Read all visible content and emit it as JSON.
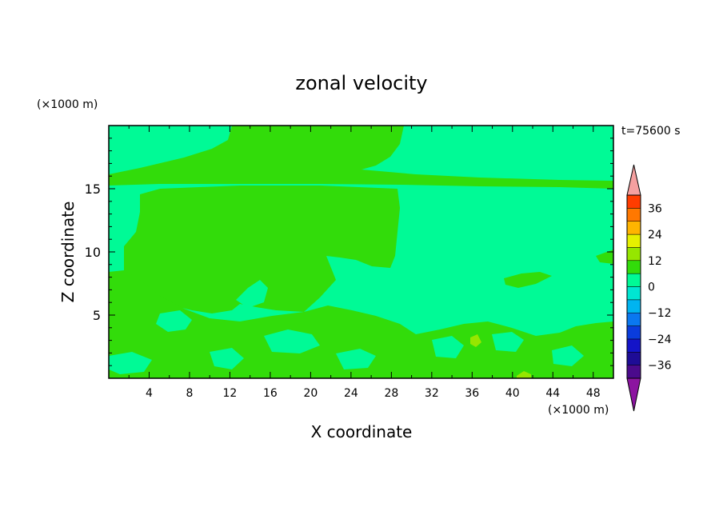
{
  "chart_data": {
    "type": "heatmap",
    "title": "zonal velocity",
    "xlabel": "X coordinate",
    "ylabel": "Z coordinate",
    "x_unit": "(×1000 m)",
    "y_unit": "(×1000 m)",
    "time_label": "t=75600 s",
    "xlim": [
      0,
      50
    ],
    "ylim": [
      0,
      20
    ],
    "x_ticks": [
      4,
      8,
      12,
      16,
      20,
      24,
      28,
      32,
      36,
      40,
      44,
      48
    ],
    "y_ticks": [
      5,
      10,
      15
    ],
    "colorbar": {
      "levels": [
        -42,
        -36,
        -30,
        -24,
        -18,
        -12,
        -6,
        0,
        6,
        12,
        18,
        24,
        30,
        36,
        42
      ],
      "colors": [
        "#4b0a8c",
        "#1e0c96",
        "#1414c8",
        "#0a3cdc",
        "#0a78f0",
        "#00b4f0",
        "#00e6d2",
        "#00fa96",
        "#32dc0a",
        "#96e600",
        "#e6f000",
        "#ffb400",
        "#ff7800",
        "#ff3c00",
        "#ff0000"
      ],
      "tick_values": [
        36,
        24,
        12,
        0,
        -12,
        -24,
        -36
      ],
      "tick_labels": [
        "36",
        "24",
        "12",
        "0",
        "−12",
        "−24",
        "−36"
      ],
      "over_color": "#f5a0a0",
      "under_color": "#8c14a0"
    },
    "field_colors": {
      "background": "#00fa96",
      "positive": "#32dc0a",
      "weak_positive": "#96e600"
    }
  }
}
